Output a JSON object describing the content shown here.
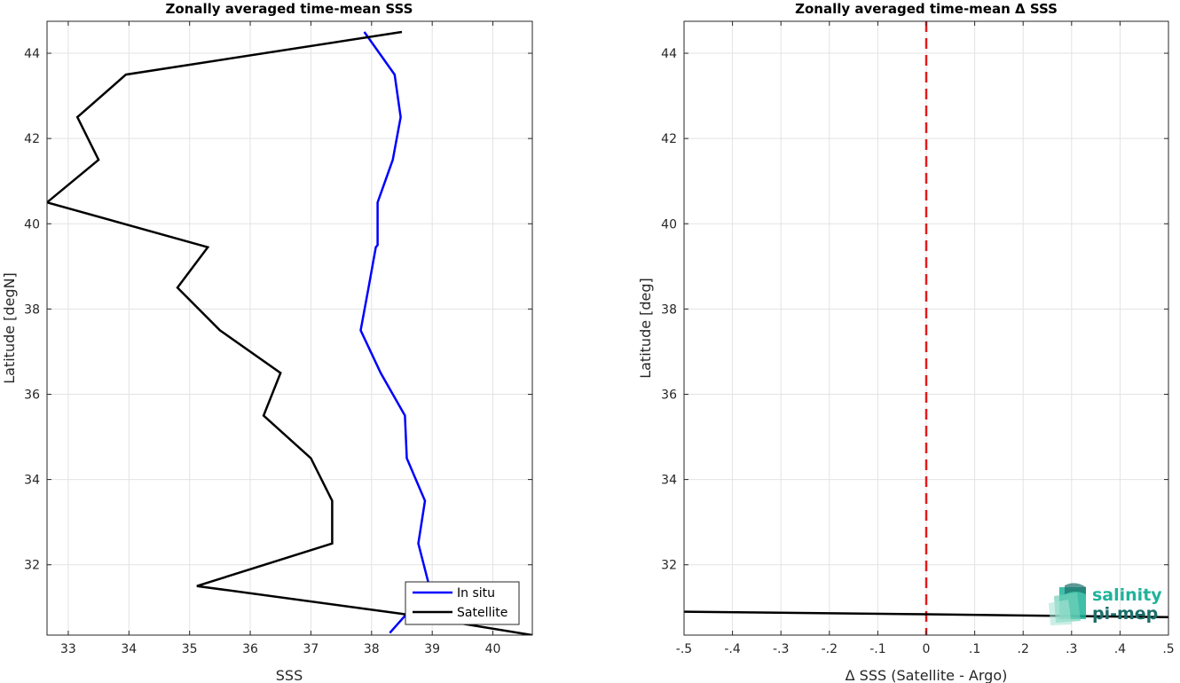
{
  "chart_data": [
    {
      "type": "line",
      "title": "Zonally averaged time-mean SSS",
      "xlabel": "SSS",
      "ylabel": "Latitude [degN]",
      "xlim": [
        32.65,
        40.65
      ],
      "ylim": [
        30.35,
        44.75
      ],
      "xticks": [
        33,
        34,
        35,
        36,
        37,
        38,
        39,
        40
      ],
      "yticks": [
        32,
        34,
        36,
        38,
        40,
        42,
        44
      ],
      "grid": true,
      "legend": "bottom-right",
      "series": [
        {
          "name": "In situ",
          "color": "#0000ff",
          "x": [
            37.88,
            38.38,
            38.48,
            38.35,
            38.1,
            38.1,
            38.07,
            37.95,
            37.82,
            38.15,
            38.55,
            38.58,
            38.88,
            38.77,
            38.95,
            38.58,
            38.3
          ],
          "y": [
            44.5,
            43.5,
            42.5,
            41.5,
            40.5,
            39.5,
            39.45,
            38.5,
            37.5,
            36.5,
            35.5,
            34.5,
            33.5,
            32.5,
            31.5,
            30.85,
            30.4
          ]
        },
        {
          "name": "Satellite",
          "color": "#000000",
          "x": [
            38.5,
            33.95,
            33.15,
            33.5,
            32.65,
            35.3,
            34.8,
            35.5,
            36.5,
            36.22,
            37.0,
            37.35,
            37.35,
            35.12,
            38.5,
            40.65
          ],
          "y": [
            44.5,
            43.5,
            42.5,
            41.5,
            40.5,
            39.45,
            38.5,
            37.5,
            36.5,
            35.5,
            34.5,
            33.5,
            32.5,
            31.5,
            30.85,
            30.35
          ]
        }
      ]
    },
    {
      "type": "line",
      "title": "Zonally averaged time-mean Δ SSS",
      "xlabel": "Δ SSS (Satellite - Argo)",
      "ylabel": "Latitude [deg]",
      "xlim": [
        -0.5,
        0.5
      ],
      "ylim": [
        30.35,
        44.75
      ],
      "xticks": [
        -0.5,
        -0.4,
        -0.3,
        -0.2,
        -0.1,
        0,
        0.1,
        0.2,
        0.3,
        0.4,
        0.5
      ],
      "yticks": [
        32,
        34,
        36,
        38,
        40,
        42,
        44
      ],
      "grid": true,
      "reference_line": {
        "x": 0,
        "color": "#e31a1c",
        "style": "dashed"
      },
      "series": [
        {
          "color": "#000000",
          "x": [
            -0.5,
            0.0,
            0.5
          ],
          "y": [
            30.9,
            30.84,
            30.77
          ]
        }
      ]
    }
  ],
  "logo": {
    "line1": "salinity",
    "line2": "pi-mep",
    "color1": "#1fb39a",
    "color2": "#1b6e6a"
  }
}
